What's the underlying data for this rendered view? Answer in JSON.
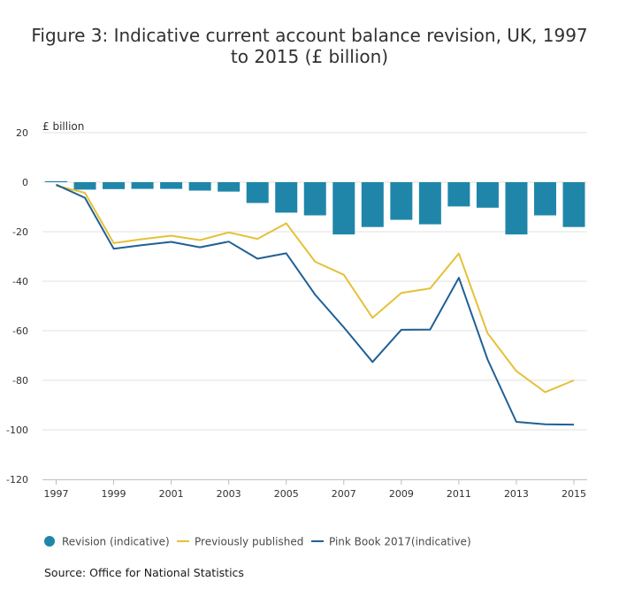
{
  "chart_data": {
    "type": "bar",
    "title": "Figure 3: Indicative current account balance revision, UK, 1997 to 2015 (£ billion)",
    "ylabel": "£ billion",
    "xlabel": "",
    "ylim": [
      -120,
      20
    ],
    "yticks": [
      20,
      0,
      -20,
      -40,
      -60,
      -80,
      -100,
      -120
    ],
    "xtick_labels": [
      "1997",
      "1999",
      "2001",
      "2003",
      "2005",
      "2007",
      "2009",
      "2011",
      "2013",
      "2015"
    ],
    "categories": [
      "1997",
      "1998",
      "1999",
      "2000",
      "2001",
      "2002",
      "2003",
      "2004",
      "2005",
      "2006",
      "2007",
      "2008",
      "2009",
      "2010",
      "2011",
      "2012",
      "2013",
      "2014",
      "2015"
    ],
    "grid": "horizontal",
    "legend_position": "bottom",
    "series": [
      {
        "name": "Revision (indicative)",
        "type": "bar",
        "color": "#1f86a9",
        "values": [
          0.4,
          -3.0,
          -2.8,
          -2.7,
          -2.7,
          -3.4,
          -3.8,
          -8.4,
          -12.3,
          -13.4,
          -21.1,
          -18.1,
          -15.2,
          -17.0,
          -9.8,
          -10.3,
          -21.1,
          -13.4,
          -18.1
        ]
      },
      {
        "name": "Previously published",
        "type": "line",
        "color": "#e5c138",
        "values": [
          -1.4,
          -4.3,
          -24.6,
          -23.0,
          -21.6,
          -23.4,
          -20.3,
          -22.9,
          -16.6,
          -32.1,
          -37.4,
          -54.8,
          -44.7,
          -42.9,
          -28.8,
          -61.0,
          -76.3,
          -84.8,
          -80.0
        ]
      },
      {
        "name": "Pink Book 2017(indicative)",
        "type": "line",
        "color": "#206095",
        "values": [
          -1.0,
          -6.3,
          -26.9,
          -25.4,
          -24.1,
          -26.3,
          -24.0,
          -30.9,
          -28.7,
          -45.4,
          -58.6,
          -72.6,
          -59.6,
          -59.5,
          -38.6,
          -71.6,
          -96.8,
          -97.8,
          -97.9
        ]
      }
    ]
  },
  "source": "Source: Office for National Statistics"
}
